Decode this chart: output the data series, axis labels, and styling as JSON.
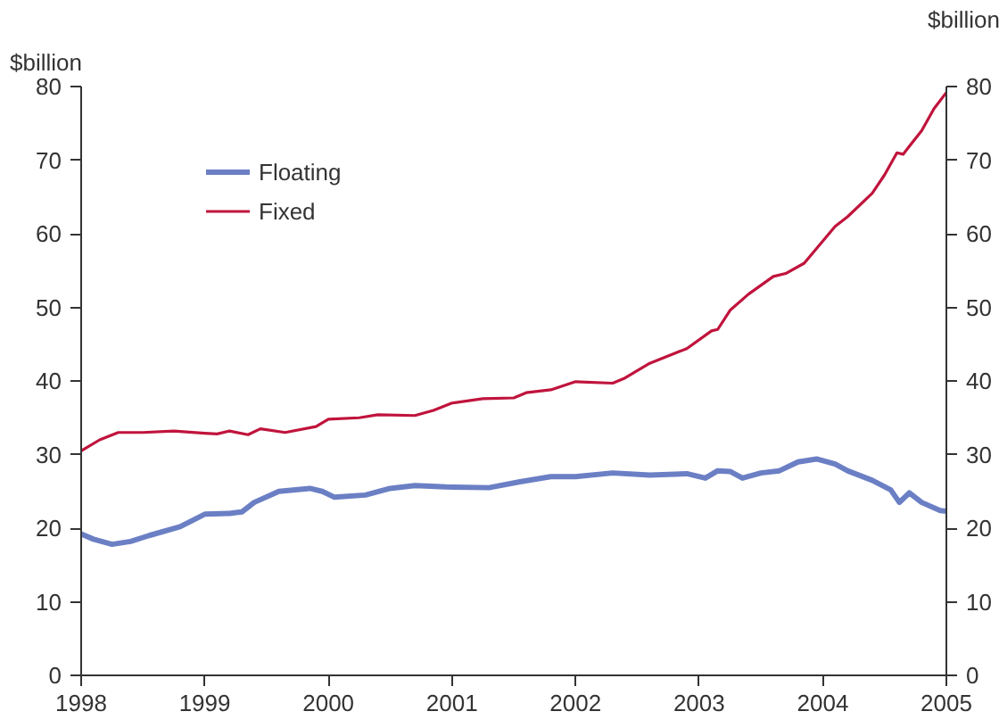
{
  "chart_data": {
    "type": "line",
    "ylabel": "$billion",
    "y2label": "$billion",
    "xlim": [
      1998,
      2005
    ],
    "xticks": [
      1998,
      1999,
      2000,
      2001,
      2002,
      2003,
      2004,
      2005
    ],
    "ylim": [
      0,
      80
    ],
    "yticks": [
      0,
      10,
      20,
      30,
      40,
      50,
      60,
      70,
      80
    ],
    "y2lim": [
      0,
      80
    ],
    "y2ticks": [
      0,
      10,
      20,
      30,
      40,
      50,
      60,
      70,
      80
    ],
    "grid": false,
    "legend": "top left",
    "marker": "none",
    "line_style": "solid",
    "series": [
      {
        "name": "Floating",
        "color": "#6b7fc4",
        "x": [
          1998,
          1998.1,
          1998.25,
          1998.4,
          1998.55,
          1998.8,
          1999.0,
          1999.2,
          1999.3,
          1999.4,
          1999.6,
          1999.85,
          1999.95,
          2000.05,
          2000.3,
          2000.5,
          2000.7,
          2000.95,
          2001.3,
          2001.55,
          2001.8,
          2002.0,
          2002.3,
          2002.6,
          2002.9,
          2003.05,
          2003.15,
          2003.25,
          2003.35,
          2003.5,
          2003.65,
          2003.8,
          2003.95,
          2004.1,
          2004.2,
          2004.4,
          2004.55,
          2004.62,
          2004.7,
          2004.8,
          2004.95,
          2005.0
        ],
        "values": [
          19.2,
          18.5,
          17.8,
          18.2,
          19.0,
          20.2,
          21.9,
          22.0,
          22.2,
          23.5,
          25.0,
          25.4,
          25.0,
          24.2,
          24.5,
          25.4,
          25.8,
          25.6,
          25.5,
          26.3,
          27.0,
          27.0,
          27.5,
          27.2,
          27.4,
          26.8,
          27.8,
          27.7,
          26.8,
          27.5,
          27.8,
          29.0,
          29.4,
          28.7,
          27.8,
          26.5,
          25.2,
          23.5,
          24.8,
          23.5,
          22.4,
          22.3
        ]
      },
      {
        "name": "Fixed",
        "color": "#c0143c",
        "x": [
          1998,
          1998.15,
          1998.3,
          1998.5,
          1998.75,
          1999.0,
          1999.1,
          1999.2,
          1999.35,
          1999.45,
          1999.65,
          1999.9,
          2000.0,
          2000.25,
          2000.4,
          2000.7,
          2000.85,
          2001.0,
          2001.25,
          2001.5,
          2001.6,
          2001.8,
          2002.0,
          2002.3,
          2002.4,
          2002.6,
          2002.9,
          2003.1,
          2003.15,
          2003.25,
          2003.4,
          2003.6,
          2003.7,
          2003.85,
          2004.0,
          2004.1,
          2004.2,
          2004.4,
          2004.5,
          2004.6,
          2004.65,
          2004.8,
          2004.9,
          2005.0
        ],
        "values": [
          30.5,
          32.0,
          33.0,
          33.0,
          33.2,
          32.9,
          32.8,
          33.2,
          32.7,
          33.5,
          33.0,
          33.8,
          34.8,
          35.0,
          35.4,
          35.3,
          36.0,
          37.0,
          37.6,
          37.7,
          38.4,
          38.8,
          39.9,
          39.7,
          40.4,
          42.4,
          44.4,
          46.8,
          47.0,
          49.6,
          51.8,
          54.2,
          54.6,
          56.0,
          59.0,
          61.0,
          62.3,
          65.5,
          68.0,
          71.0,
          70.8,
          74.0,
          77.0,
          79.2
        ]
      }
    ]
  }
}
